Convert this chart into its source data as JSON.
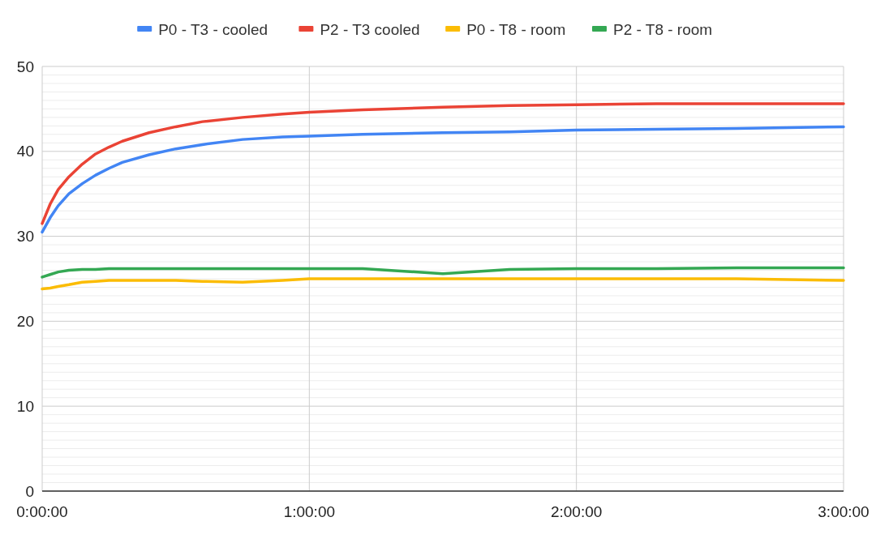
{
  "chart_data": {
    "type": "line",
    "legend": "top",
    "grid": true,
    "line_style": "solid",
    "marker": "none",
    "xlim": [
      0,
      3
    ],
    "xticks": [
      {
        "value": 0,
        "label": "0:00:00"
      },
      {
        "value": 1,
        "label": "1:00:00"
      },
      {
        "value": 2,
        "label": "2:00:00"
      },
      {
        "value": 3,
        "label": "3:00:00"
      }
    ],
    "ylim": [
      0,
      50
    ],
    "yticks": [
      0,
      {
        "value": 1,
        "label": null
      },
      {
        "value": 2,
        "label": null
      },
      {
        "value": 3,
        "label": null
      },
      {
        "value": 4,
        "label": null
      },
      {
        "value": 5,
        "label": null
      },
      {
        "value": 6,
        "label": null
      },
      {
        "value": 7,
        "label": null
      },
      {
        "value": 8,
        "label": null
      },
      {
        "value": 9,
        "label": null
      },
      10,
      {
        "value": 11,
        "label": null
      },
      {
        "value": 12,
        "label": null
      },
      {
        "value": 13,
        "label": null
      },
      {
        "value": 14,
        "label": null
      },
      {
        "value": 15,
        "label": null
      },
      {
        "value": 16,
        "label": null
      },
      {
        "value": 17,
        "label": null
      },
      {
        "value": 18,
        "label": null
      },
      {
        "value": 19,
        "label": null
      },
      20,
      {
        "value": 21,
        "label": null
      },
      {
        "value": 22,
        "label": null
      },
      {
        "value": 23,
        "label": null
      },
      {
        "value": 24,
        "label": null
      },
      {
        "value": 25,
        "label": null
      },
      {
        "value": 26,
        "label": null
      },
      {
        "value": 27,
        "label": null
      },
      {
        "value": 28,
        "label": null
      },
      {
        "value": 29,
        "label": null
      },
      30,
      {
        "value": 31,
        "label": null
      },
      {
        "value": 32,
        "label": null
      },
      {
        "value": 33,
        "label": null
      },
      {
        "value": 34,
        "label": null
      },
      {
        "value": 35,
        "label": null
      },
      {
        "value": 36,
        "label": null
      },
      {
        "value": 37,
        "label": null
      },
      {
        "value": 38,
        "label": null
      },
      {
        "value": 39,
        "label": null
      },
      40,
      {
        "value": 41,
        "label": null
      },
      {
        "value": 42,
        "label": null
      },
      {
        "value": 43,
        "label": null
      },
      {
        "value": 44,
        "label": null
      },
      {
        "value": 45,
        "label": null
      },
      {
        "value": 46,
        "label": null
      },
      {
        "value": 47,
        "label": null
      },
      {
        "value": 48,
        "label": null
      },
      {
        "value": 49,
        "label": null
      },
      50
    ],
    "x": [
      0,
      0.03,
      0.06,
      0.1,
      0.15,
      0.2,
      0.25,
      0.3,
      0.4,
      0.5,
      0.6,
      0.75,
      0.9,
      1.0,
      1.2,
      1.5,
      1.75,
      2.0,
      2.3,
      2.6,
      3.0
    ],
    "series": [
      {
        "name": "P0 - T3 - cooled",
        "color": "#4285f4",
        "values": [
          30.5,
          32.2,
          33.6,
          35,
          36.2,
          37.2,
          38,
          38.7,
          39.6,
          40.3,
          40.8,
          41.4,
          41.7,
          41.8,
          42,
          42.2,
          42.3,
          42.5,
          42.6,
          42.7,
          42.9
        ]
      },
      {
        "name": "P2 - T3 cooled",
        "color": "#ea4335",
        "values": [
          31.5,
          33.8,
          35.5,
          37,
          38.5,
          39.7,
          40.5,
          41.2,
          42.2,
          42.9,
          43.5,
          44,
          44.4,
          44.6,
          44.9,
          45.2,
          45.4,
          45.5,
          45.6,
          45.6,
          45.6
        ]
      },
      {
        "name": "P0 - T8 - room",
        "color": "#fbbc04",
        "values": [
          23.8,
          23.9,
          24.1,
          24.3,
          24.6,
          24.7,
          24.8,
          24.8,
          24.8,
          24.8,
          24.7,
          24.6,
          24.8,
          25,
          25,
          25,
          25,
          25,
          25,
          25,
          24.8
        ]
      },
      {
        "name": "P2 - T8 - room",
        "color": "#34a853",
        "values": [
          25.2,
          25.5,
          25.8,
          26,
          26.1,
          26.1,
          26.2,
          26.2,
          26.2,
          26.2,
          26.2,
          26.2,
          26.2,
          26.2,
          26.2,
          25.6,
          26.1,
          26.2,
          26.2,
          26.3,
          26.3
        ]
      }
    ]
  }
}
